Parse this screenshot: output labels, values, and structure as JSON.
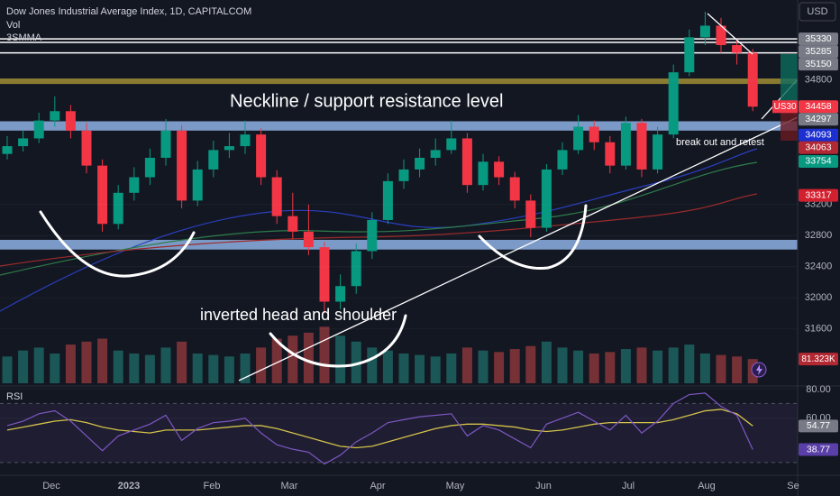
{
  "header": {
    "title": "Dow Jones Industrial Average Index, 1D, CAPITALCOM",
    "indicators": [
      "Vol",
      "3SMMA"
    ],
    "currency": "USD"
  },
  "price": {
    "ylim": [
      30900,
      35830
    ],
    "ticks": [
      34800,
      33200,
      32800,
      32400,
      32000,
      31600
    ],
    "lines": [
      35330,
      35285,
      35150
    ],
    "zones": [
      {
        "low": 34750,
        "high": 34820,
        "color": "#a08c32"
      },
      {
        "low": 34150,
        "high": 34270,
        "color": "#8fb2e4"
      },
      {
        "low": 32620,
        "high": 32745,
        "color": "#8fb2e4"
      }
    ],
    "candles": [
      [
        33850,
        34080,
        33780,
        33950
      ],
      [
        33950,
        34150,
        33880,
        34050
      ],
      [
        34050,
        34380,
        33990,
        34280
      ],
      [
        34280,
        34590,
        34200,
        34400
      ],
      [
        34400,
        34480,
        34050,
        34150
      ],
      [
        34150,
        34250,
        33600,
        33700
      ],
      [
        33700,
        33780,
        32850,
        32950
      ],
      [
        32950,
        33450,
        32880,
        33350
      ],
      [
        33350,
        33680,
        33250,
        33550
      ],
      [
        33550,
        33920,
        33450,
        33800
      ],
      [
        33800,
        34300,
        33700,
        34150
      ],
      [
        34150,
        34220,
        33150,
        33250
      ],
      [
        33250,
        33760,
        33180,
        33650
      ],
      [
        33650,
        34020,
        33550,
        33900
      ],
      [
        33900,
        34120,
        33800,
        33950
      ],
      [
        33950,
        34280,
        33850,
        34100
      ],
      [
        34100,
        34180,
        33450,
        33550
      ],
      [
        33550,
        33640,
        32950,
        33050
      ],
      [
        33050,
        33350,
        32750,
        32850
      ],
      [
        32850,
        33200,
        32550,
        32650
      ],
      [
        32650,
        32720,
        31800,
        31950
      ],
      [
        31950,
        32300,
        31850,
        32150
      ],
      [
        32150,
        32700,
        32050,
        32600
      ],
      [
        32600,
        33100,
        32500,
        33000
      ],
      [
        33000,
        33600,
        32950,
        33500
      ],
      [
        33500,
        33780,
        33400,
        33650
      ],
      [
        33650,
        33920,
        33550,
        33800
      ],
      [
        33800,
        34050,
        33700,
        33900
      ],
      [
        33900,
        34280,
        33850,
        34050
      ],
      [
        34050,
        34120,
        33350,
        33450
      ],
      [
        33450,
        33850,
        33380,
        33750
      ],
      [
        33750,
        33820,
        33450,
        33550
      ],
      [
        33550,
        33620,
        33150,
        33250
      ],
      [
        33250,
        33330,
        32780,
        32900
      ],
      [
        32900,
        33720,
        32850,
        33650
      ],
      [
        33650,
        34000,
        33580,
        33900
      ],
      [
        33900,
        34350,
        33850,
        34200
      ],
      [
        34200,
        34280,
        33900,
        34000
      ],
      [
        34000,
        34080,
        33600,
        33700
      ],
      [
        33700,
        34330,
        33650,
        34250
      ],
      [
        34250,
        34300,
        33550,
        33650
      ],
      [
        33650,
        34200,
        33600,
        34100
      ],
      [
        34100,
        35000,
        34050,
        34900
      ],
      [
        34900,
        35450,
        34850,
        35350
      ],
      [
        35350,
        35680,
        35250,
        35500
      ],
      [
        35500,
        35600,
        35150,
        35250
      ],
      [
        35250,
        35330,
        35000,
        35150
      ],
      [
        35150,
        35200,
        34400,
        34458
      ]
    ],
    "up_color": "#089981",
    "down_color": "#f23645",
    "symbol_badge": "US30",
    "badges": [
      {
        "value": 35330,
        "color": "#787b86"
      },
      {
        "value": 35285,
        "color": "#787b86"
      },
      {
        "value": 35150,
        "color": "#787b86"
      },
      {
        "value": 34458,
        "color": "#f23645"
      },
      {
        "value": 34297,
        "color": "#787b86"
      },
      {
        "value": 34093,
        "color": "#1c2fd1"
      },
      {
        "value": 34063,
        "color": "#b22833"
      },
      {
        "value": 33754,
        "color": "#089981"
      },
      {
        "value": 33317,
        "color": "#d3202f"
      }
    ]
  },
  "volume": {
    "values": [
      90,
      110,
      120,
      100,
      130,
      140,
      150,
      110,
      100,
      95,
      120,
      140,
      100,
      95,
      90,
      100,
      120,
      150,
      160,
      170,
      190,
      160,
      140,
      120,
      110,
      100,
      95,
      90,
      100,
      120,
      110,
      105,
      115,
      125,
      140,
      120,
      110,
      100,
      105,
      115,
      120,
      110,
      120,
      130,
      100,
      95,
      90,
      81.323
    ],
    "label": "81.323K"
  },
  "annotations": [
    "Neckline / support resistance level",
    "inverted head and shoulder",
    "break out and retest"
  ],
  "time_axis": [
    "Dec",
    "2023",
    "Feb",
    "Mar",
    "Apr",
    "May",
    "Jun",
    "Jul",
    "Aug",
    "Se"
  ],
  "rsi": {
    "title": "RSI",
    "ylim": [
      22,
      80.6
    ],
    "band": [
      30,
      70
    ],
    "ticks": [
      {
        "value": 80,
        "label": "80.00"
      },
      {
        "value": 60,
        "label": "60.00"
      }
    ],
    "values": [
      55,
      58,
      63,
      65,
      58,
      48,
      38,
      48,
      52,
      56,
      62,
      45,
      53,
      57,
      58,
      60,
      50,
      42,
      39,
      37,
      29,
      35,
      44,
      50,
      57,
      59,
      61,
      62,
      63,
      48,
      55,
      52,
      46,
      40,
      56,
      60,
      64,
      58,
      52,
      62,
      50,
      58,
      70,
      76,
      77,
      68,
      62,
      38.77
    ],
    "ma": [
      52,
      54,
      56,
      58,
      59,
      57,
      54,
      52,
      51,
      50,
      52,
      52,
      52,
      53,
      54,
      55,
      55,
      53,
      50,
      47,
      44,
      41,
      40,
      41,
      44,
      47,
      50,
      53,
      55,
      56,
      56,
      55,
      54,
      52,
      51,
      52,
      54,
      56,
      57,
      57,
      57,
      57,
      59,
      62,
      65,
      66,
      63,
      54.77
    ],
    "color": "#7e57c2",
    "ma_color": "#d4c24a",
    "badge_colors": [
      "#787b86",
      "#5b3fa8"
    ]
  }
}
